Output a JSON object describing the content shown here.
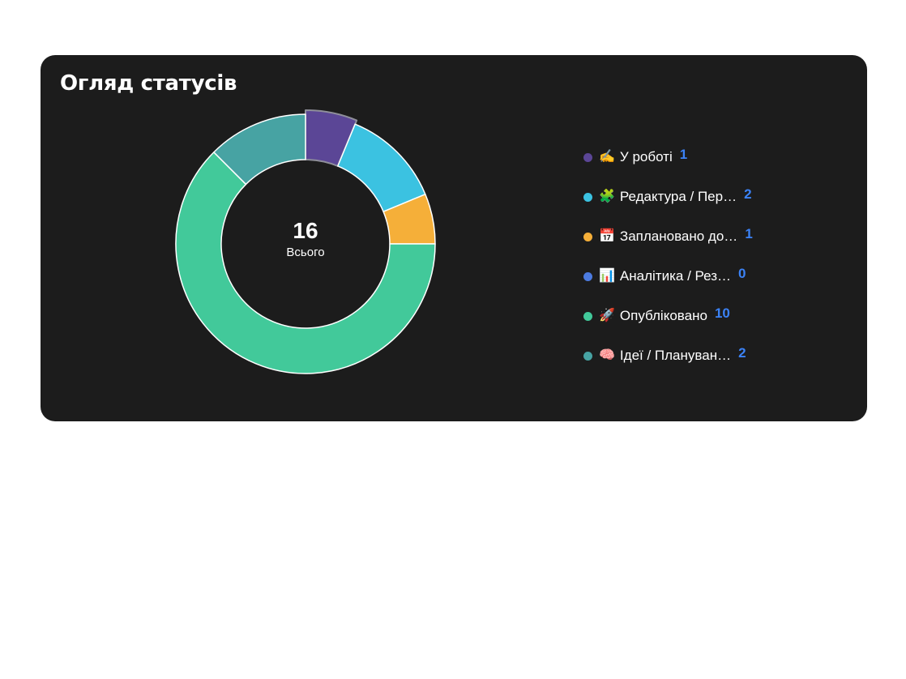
{
  "card": {
    "title": "Огляд статусів"
  },
  "chart_data": {
    "type": "pie",
    "variant": "donut",
    "total": "16",
    "total_label": "Всього",
    "highlighted_slice": "✍️ У роботі",
    "series": [
      {
        "name": "✍️ У роботі",
        "emoji": "✍️",
        "label": "У роботі",
        "value": 1,
        "display": "1",
        "color": "#5b4696"
      },
      {
        "name": "🧩 Редактура / Перевірка",
        "emoji": "🧩",
        "label": "Редактура / Пер…",
        "value": 2,
        "display": "2",
        "color": "#3bc2e1"
      },
      {
        "name": "📅 Заплановано до публікації",
        "emoji": "📅",
        "label": "Заплановано до…",
        "value": 1,
        "display": "1",
        "color": "#f5af39"
      },
      {
        "name": "📊 Аналітика / Результати",
        "emoji": "📊",
        "label": "Аналітика / Рез…",
        "value": 0,
        "display": "0",
        "color": "#4c7be0"
      },
      {
        "name": "🚀 Опубліковано",
        "emoji": "🚀",
        "label": "Опубліковано",
        "value": 10,
        "display": "10",
        "color": "#42c99a"
      },
      {
        "name": "🧠 Ідеї / Планування",
        "emoji": "🧠",
        "label": "Ідеї / Плануван…",
        "value": 2,
        "display": "2",
        "color": "#47a3a3"
      }
    ],
    "legend_position": "right"
  }
}
